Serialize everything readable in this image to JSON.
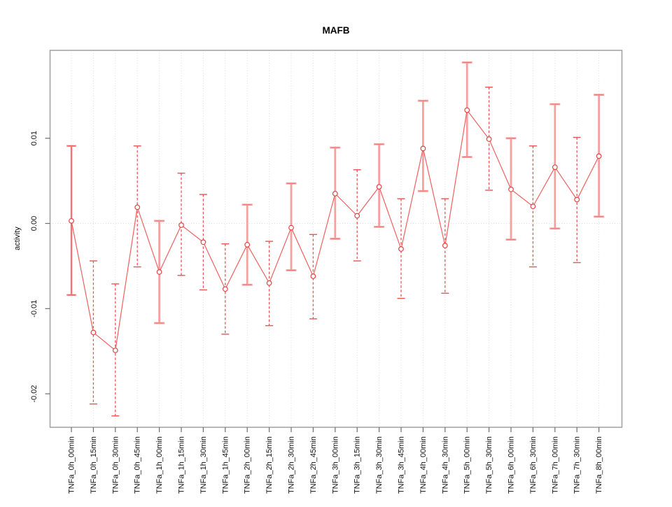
{
  "chart_data": {
    "type": "line",
    "title": "MAFB",
    "xlabel": "",
    "ylabel": "activity",
    "ylim": [
      -0.0243,
      0.0205
    ],
    "yticks": [
      -0.02,
      -0.01,
      0,
      0.01
    ],
    "ytick_labels": [
      "-0.02",
      "-0.01",
      "0.00",
      "0.01"
    ],
    "grid": "vertical dotted gridline at every category; dotted horizontal line at y=0; no legend",
    "legend": null,
    "categories": [
      "TNFa_0h_00min",
      "TNFa_0h_15min",
      "TNFa_0h_30min",
      "TNFa_0h_45min",
      "TNFa_1h_00min",
      "TNFa_1h_15min",
      "TNFa_1h_30min",
      "TNFa_1h_45min",
      "TNFa_2h_00min",
      "TNFa_2h_15min",
      "TNFa_2h_30min",
      "TNFa_2h_45min",
      "TNFa_3h_00min",
      "TNFa_3h_15min",
      "TNFa_3h_30min",
      "TNFa_3h_45min",
      "TNFa_4h_00min",
      "TNFa_4h_30min",
      "TNFa_5h_00min",
      "TNFa_5h_30min",
      "TNFa_6h_00min",
      "TNFa_6h_30min",
      "TNFa_7h_00min",
      "TNFa_7h_30min",
      "TNFa_8h_00min"
    ],
    "series": [
      {
        "name": "activity",
        "marker": "open-circle",
        "values": [
          0.0003,
          -0.0128,
          -0.0149,
          0.0019,
          -0.0057,
          -0.0002,
          -0.0022,
          -0.0077,
          -0.0025,
          -0.007,
          -0.0005,
          -0.0062,
          0.0035,
          0.0009,
          0.0043,
          -0.003,
          0.0088,
          -0.0026,
          0.0133,
          0.0099,
          0.004,
          0.002,
          0.0066,
          0.0028,
          0.0079
        ],
        "error_high": [
          0.0091,
          -0.0044,
          -0.0071,
          0.0091,
          0.0003,
          0.0059,
          0.0034,
          -0.0024,
          0.0022,
          -0.0021,
          0.0047,
          -0.0013,
          0.0089,
          0.0063,
          0.0093,
          0.0029,
          0.0144,
          0.0029,
          0.0189,
          0.016,
          0.01,
          0.0091,
          0.014,
          0.0101,
          0.0151
        ],
        "error_low": [
          -0.0084,
          -0.0212,
          -0.0226,
          -0.0051,
          -0.0117,
          -0.0061,
          -0.0078,
          -0.013,
          -0.0072,
          -0.012,
          -0.0055,
          -0.0112,
          -0.0018,
          -0.0044,
          -0.0004,
          -0.0088,
          0.0038,
          -0.0082,
          0.0078,
          0.0039,
          -0.0019,
          -0.0051,
          -0.0006,
          -0.0046,
          0.0008
        ],
        "bar_styles": [
          "thin",
          "dashed",
          "dashed",
          "dashed",
          "thick",
          "dashed",
          "dashed",
          "dashed",
          "thick",
          "dashed",
          "thick",
          "dashed",
          "thick",
          "dashed",
          "thick",
          "dashed",
          "thick",
          "dashed",
          "thick",
          "dashed",
          "thick",
          "dashed",
          "thick",
          "dashed",
          "thick"
        ]
      }
    ],
    "colors": {
      "line": "#f06060",
      "marker": "#e24545",
      "error_bar_thick": "#f7a0a0",
      "error_bar_dashed": "#e85555",
      "error_bar_thin": "#ef5555",
      "gridline": "#dcdcdc",
      "zero_line": "#d9d9d9",
      "box": "#9a9a9a",
      "tick": "#6e6e6e",
      "label_text": "#111111"
    }
  }
}
